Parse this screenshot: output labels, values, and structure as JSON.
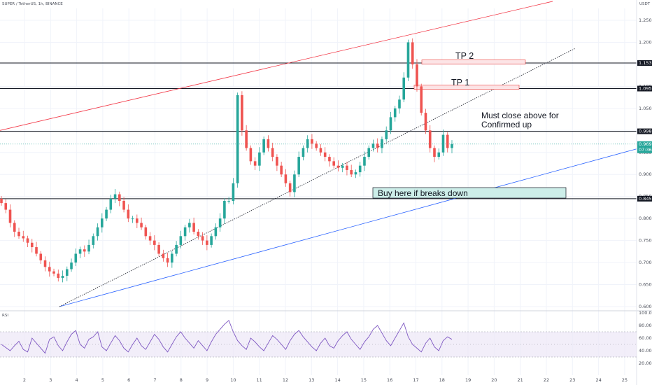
{
  "header": {
    "symbol": "SUPER / TetherUS, 1h, BINANCE",
    "quote_currency": "USDT"
  },
  "rsi_label": "RSI",
  "annotations": {
    "tp2": "TP 2",
    "tp1": "TP 1",
    "must_close_1": "Must close above for",
    "must_close_2": "Confirmed up",
    "buy_here": "Buy here if breaks down"
  },
  "price_badges": [
    {
      "label": "1.153",
      "value": 1.153,
      "style": "dark"
    },
    {
      "label": "1.095",
      "value": 1.095,
      "style": "dark"
    },
    {
      "label": "0.998",
      "value": 0.998,
      "style": "dark"
    },
    {
      "label": "0.969",
      "sub": "07:36",
      "value": 0.969,
      "style": "teal"
    },
    {
      "label": "0.845",
      "value": 0.845,
      "style": "dark"
    }
  ],
  "colors": {
    "up": "#26a69a",
    "down": "#ef5350",
    "channel_top": "#f23645",
    "trend_blue": "#2962ff",
    "rsi_line": "#7e57c2",
    "rsi_band": "#ede7f6",
    "tp_box": "#fce4e6",
    "buy_box": "#cdeee9"
  },
  "chart_data": {
    "type": "candlestick",
    "title": "SUPER / TetherUS, 1h, BINANCE",
    "price_axis": {
      "range": [
        0.6,
        1.27
      ],
      "ticks": [
        "1.250",
        "1.200",
        "1.150",
        "1.100",
        "1.050",
        "1.000",
        "0.950",
        "0.900",
        "0.850",
        "0.800",
        "0.750",
        "0.700",
        "0.650",
        "0.600"
      ]
    },
    "rsi_axis": {
      "range": [
        10,
        100
      ],
      "ticks": [
        "100.00",
        "80.00",
        "60.00",
        "40.00",
        "20.00"
      ],
      "band": [
        30,
        70
      ]
    },
    "x_axis": {
      "labels": [
        "2",
        "3",
        "4",
        "5",
        "6",
        "7",
        "8",
        "9",
        "10",
        "11",
        "12",
        "13",
        "14",
        "15",
        "16",
        "17",
        "18",
        "19",
        "20",
        "21",
        "22",
        "23",
        "24",
        "25"
      ]
    },
    "horizontal_levels": [
      1.153,
      1.095,
      0.998,
      0.845
    ],
    "close_series": [
      0.835,
      0.82,
      0.79,
      0.77,
      0.76,
      0.755,
      0.745,
      0.735,
      0.72,
      0.705,
      0.69,
      0.68,
      0.675,
      0.665,
      0.67,
      0.685,
      0.7,
      0.72,
      0.73,
      0.725,
      0.74,
      0.76,
      0.78,
      0.8,
      0.82,
      0.845,
      0.855,
      0.84,
      0.82,
      0.8,
      0.8,
      0.79,
      0.78,
      0.76,
      0.75,
      0.74,
      0.72,
      0.71,
      0.7,
      0.72,
      0.74,
      0.76,
      0.78,
      0.79,
      0.77,
      0.76,
      0.75,
      0.74,
      0.76,
      0.78,
      0.8,
      0.84,
      0.84,
      0.88,
      1.08,
      1.0,
      0.96,
      0.93,
      0.92,
      0.95,
      0.98,
      0.96,
      0.94,
      0.92,
      0.9,
      0.88,
      0.86,
      0.9,
      0.94,
      0.96,
      0.98,
      0.97,
      0.96,
      0.95,
      0.94,
      0.93,
      0.92,
      0.915,
      0.92,
      0.91,
      0.9,
      0.905,
      0.92,
      0.94,
      0.96,
      0.97,
      0.96,
      0.98,
      1.0,
      1.03,
      1.05,
      1.07,
      1.12,
      1.2,
      1.15,
      1.1,
      1.04,
      1.0,
      0.96,
      0.94,
      0.95,
      0.99,
      0.96,
      0.969
    ],
    "rsi_series": [
      50,
      45,
      40,
      48,
      55,
      42,
      38,
      60,
      52,
      44,
      36,
      58,
      62,
      48,
      40,
      54,
      66,
      72,
      50,
      44,
      58,
      62,
      70,
      46,
      40,
      52,
      64,
      56,
      44,
      38,
      50,
      60,
      48,
      42,
      54,
      66,
      58,
      46,
      38,
      50,
      62,
      70,
      60,
      52,
      44,
      56,
      48,
      40,
      54,
      66,
      74,
      82,
      88,
      70,
      56,
      48,
      42,
      60,
      54,
      46,
      40,
      52,
      64,
      58,
      50,
      42,
      56,
      66,
      72,
      62,
      54,
      46,
      40,
      52,
      60,
      48,
      44,
      56,
      64,
      70,
      58,
      50,
      42,
      54,
      62,
      74,
      80,
      68,
      56,
      48,
      60,
      72,
      84,
      62,
      50,
      44,
      38,
      52,
      60,
      46,
      40,
      56,
      62,
      58
    ]
  }
}
